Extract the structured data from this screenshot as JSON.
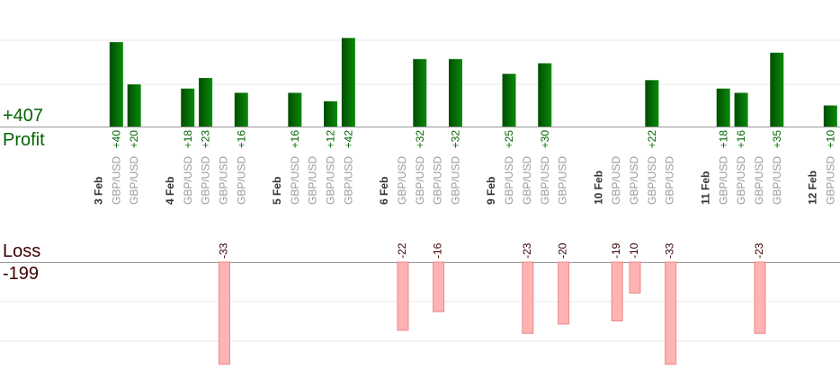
{
  "summary": {
    "profit_total": "+407",
    "profit_label": "Profit",
    "loss_label": "Loss",
    "loss_total": "-199"
  },
  "colors": {
    "profit_bar_dark": "#004d00",
    "profit_bar_light": "#0a8a0a",
    "loss_bar_fill": "#ffb3b3",
    "loss_bar_stroke": "#e88a8a",
    "profit_text": "#006400",
    "loss_text": "#3a0000",
    "date_text": "#333333",
    "pair_text": "#9a9a9a",
    "axis": "#999999",
    "grid": "#e8e8e8"
  },
  "chart_data": {
    "type": "bar",
    "subtype": "diverging profit/loss per trade",
    "grid": true,
    "columns": [
      {
        "label": "3 Feb",
        "kind": "date"
      },
      {
        "label": "GBP/USD",
        "kind": "trade",
        "value": 40,
        "text": "+40"
      },
      {
        "label": "GBP/USD",
        "kind": "trade",
        "value": 20,
        "text": "+20"
      },
      {
        "label": "",
        "kind": "spacer"
      },
      {
        "label": "4 Feb",
        "kind": "date"
      },
      {
        "label": "GBP/USD",
        "kind": "trade",
        "value": 18,
        "text": "+18"
      },
      {
        "label": "GBP/USD",
        "kind": "trade",
        "value": 23,
        "text": "+23"
      },
      {
        "label": "GBP/USD",
        "kind": "trade",
        "value": -33,
        "text": "-33"
      },
      {
        "label": "GBP/USD",
        "kind": "trade",
        "value": 16,
        "text": "+16"
      },
      {
        "label": "",
        "kind": "spacer"
      },
      {
        "label": "5 Feb",
        "kind": "date"
      },
      {
        "label": "GBP/USD",
        "kind": "trade",
        "value": 16,
        "text": "+16"
      },
      {
        "label": "GBP/USD",
        "kind": "trade",
        "value": 0,
        "text": ""
      },
      {
        "label": "GBP/USD",
        "kind": "trade",
        "value": 12,
        "text": "+12"
      },
      {
        "label": "GBP/USD",
        "kind": "trade",
        "value": 42,
        "text": "+42"
      },
      {
        "label": "",
        "kind": "spacer"
      },
      {
        "label": "6 Feb",
        "kind": "date"
      },
      {
        "label": "GBP/USD",
        "kind": "trade",
        "value": -22,
        "text": "-22"
      },
      {
        "label": "GBP/USD",
        "kind": "trade",
        "value": 32,
        "text": "+32"
      },
      {
        "label": "GBP/USD",
        "kind": "trade",
        "value": -16,
        "text": "-16"
      },
      {
        "label": "GBP/USD",
        "kind": "trade",
        "value": 32,
        "text": "+32"
      },
      {
        "label": "",
        "kind": "spacer"
      },
      {
        "label": "9 Feb",
        "kind": "date"
      },
      {
        "label": "GBP/USD",
        "kind": "trade",
        "value": 25,
        "text": "+25"
      },
      {
        "label": "GBP/USD",
        "kind": "trade",
        "value": -23,
        "text": "-23"
      },
      {
        "label": "GBP/USD",
        "kind": "trade",
        "value": 30,
        "text": "+30"
      },
      {
        "label": "GBP/USD",
        "kind": "trade",
        "value": -20,
        "text": "-20"
      },
      {
        "label": "",
        "kind": "spacer"
      },
      {
        "label": "10 Feb",
        "kind": "date"
      },
      {
        "label": "GBP/USD",
        "kind": "trade",
        "value": -19,
        "text": "-19"
      },
      {
        "label": "GBP/USD",
        "kind": "trade",
        "value": -10,
        "text": "-10"
      },
      {
        "label": "GBP/USD",
        "kind": "trade",
        "value": 22,
        "text": "+22"
      },
      {
        "label": "GBP/USD",
        "kind": "trade",
        "value": -33,
        "text": "-33"
      },
      {
        "label": "",
        "kind": "spacer"
      },
      {
        "label": "11 Feb",
        "kind": "date"
      },
      {
        "label": "GBP/USD",
        "kind": "trade",
        "value": 18,
        "text": "+18"
      },
      {
        "label": "GBP/USD",
        "kind": "trade",
        "value": 16,
        "text": "+16"
      },
      {
        "label": "GBP/USD",
        "kind": "trade",
        "value": -23,
        "text": "-23"
      },
      {
        "label": "GBP/USD",
        "kind": "trade",
        "value": 35,
        "text": "+35"
      },
      {
        "label": "",
        "kind": "spacer"
      },
      {
        "label": "12 Feb",
        "kind": "date"
      },
      {
        "label": "GBP/USD",
        "kind": "trade",
        "value": 10,
        "text": "+10"
      },
      {
        "label": "GBP/USD",
        "kind": "trade",
        "value": 0,
        "text": ""
      }
    ]
  }
}
